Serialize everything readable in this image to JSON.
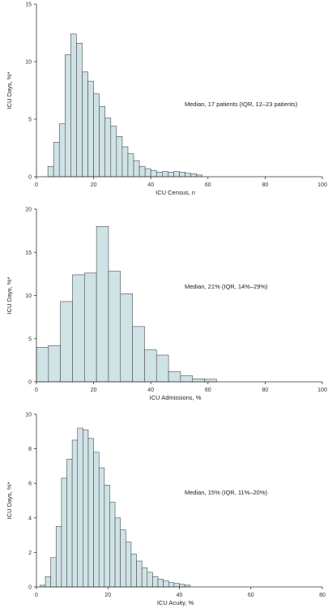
{
  "colors": {
    "bar_fill": "#cfe3e6",
    "bar_stroke": "#4a4a4a",
    "axis": "#333333"
  },
  "chart_data": [
    {
      "type": "bar",
      "histogram": true,
      "xlabel": "ICU Census, ",
      "xlabel_italic": "n",
      "ylabel": "ICU Days, %*",
      "annotation": "Median, 17 patients (IQR, 12–23 patients)",
      "xlim": [
        0,
        100
      ],
      "ylim": [
        0,
        15
      ],
      "xticks": [
        0,
        20,
        40,
        60,
        80,
        100
      ],
      "yticks": [
        0,
        5,
        10,
        15
      ],
      "bin_width": 2,
      "bins_start": [
        4,
        6,
        8,
        10,
        12,
        14,
        16,
        18,
        20,
        22,
        24,
        26,
        28,
        30,
        32,
        34,
        36,
        38,
        40,
        42,
        44,
        46,
        48,
        50,
        52,
        54,
        56
      ],
      "values": [
        0.9,
        3.0,
        4.6,
        10.6,
        12.4,
        11.6,
        9.1,
        8.3,
        7.2,
        6.1,
        5.1,
        4.4,
        3.5,
        2.6,
        2.0,
        1.4,
        0.9,
        0.7,
        0.55,
        0.4,
        0.45,
        0.4,
        0.45,
        0.4,
        0.3,
        0.25,
        0.15
      ]
    },
    {
      "type": "bar",
      "histogram": true,
      "xlabel": "ICU Admissions, %",
      "xlabel_italic": "",
      "ylabel": "ICU Days, %*",
      "annotation": "Median, 21% (IQR, 14%–29%)",
      "xlim": [
        0,
        100
      ],
      "ylim": [
        0,
        20
      ],
      "xticks": [
        0,
        20,
        40,
        60,
        80,
        100
      ],
      "yticks": [
        0,
        5,
        10,
        15,
        20
      ],
      "bin_width": 4.2,
      "bins_start": [
        0,
        4.2,
        8.4,
        12.6,
        16.8,
        21,
        25.2,
        29.4,
        33.6,
        37.8,
        42,
        46.2,
        50.4,
        54.6,
        58.8
      ],
      "values": [
        4.0,
        4.2,
        9.3,
        12.4,
        12.6,
        18.0,
        12.8,
        10.2,
        6.4,
        3.7,
        3.1,
        1.2,
        0.7,
        0.35,
        0.3
      ]
    },
    {
      "type": "bar",
      "histogram": true,
      "xlabel": "ICU Acuity, %",
      "xlabel_italic": "",
      "ylabel": "ICU Days, %*",
      "annotation": "Median, 15% (IQR, 11%–20%)",
      "xlim": [
        0,
        80
      ],
      "ylim": [
        0,
        10
      ],
      "xticks": [
        0,
        20,
        40,
        60,
        80
      ],
      "yticks": [
        0,
        2,
        4,
        6,
        8,
        10
      ],
      "bin_width": 1.5,
      "bins_start": [
        1,
        2.5,
        4,
        5.5,
        7,
        8.5,
        10,
        11.5,
        13,
        14.5,
        16,
        17.5,
        19,
        20.5,
        22,
        23.5,
        25,
        26.5,
        28,
        29.5,
        31,
        32.5,
        34,
        35.5,
        37,
        38.5,
        40,
        41.5
      ],
      "values": [
        0.1,
        0.6,
        1.7,
        3.5,
        6.3,
        7.4,
        8.5,
        9.2,
        9.1,
        8.6,
        7.8,
        6.9,
        5.9,
        4.9,
        4.0,
        3.3,
        2.6,
        1.9,
        1.5,
        1.1,
        0.85,
        0.6,
        0.45,
        0.35,
        0.25,
        0.2,
        0.15,
        0.1
      ]
    }
  ]
}
